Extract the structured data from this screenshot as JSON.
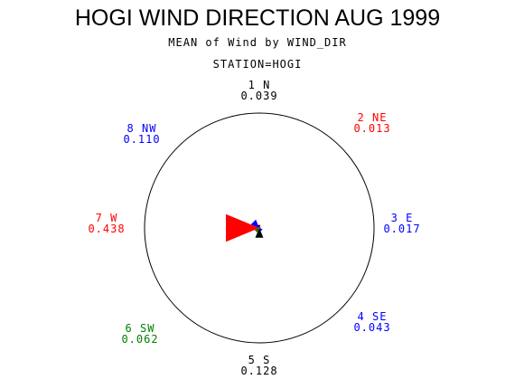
{
  "chart_data": {
    "type": "wind-rose",
    "title": "HOGI WIND DIRECTION AUG 1999",
    "subtitle": "MEAN of Wind by WIND_DIR",
    "station": "STATION=HOGI",
    "directions": [
      {
        "label": "1 N",
        "value": "0.039",
        "num": 0.039,
        "angle": 0,
        "color": "#000000"
      },
      {
        "label": "2 NE",
        "value": "0.013",
        "num": 0.013,
        "angle": 45,
        "color": "#ff0000"
      },
      {
        "label": "3 E",
        "value": "0.017",
        "num": 0.017,
        "angle": 90,
        "color": "#0000ff"
      },
      {
        "label": "4 SE",
        "value": "0.043",
        "num": 0.043,
        "angle": 135,
        "color": "#0000ff"
      },
      {
        "label": "5 S",
        "value": "0.128",
        "num": 0.128,
        "angle": 180,
        "color": "#000000"
      },
      {
        "label": "6 SW",
        "value": "0.062",
        "num": 0.062,
        "angle": 225,
        "color": "#008000"
      },
      {
        "label": "7 W",
        "value": "0.438",
        "num": 0.438,
        "angle": 270,
        "color": "#ff0000"
      },
      {
        "label": "8 NW",
        "value": "0.110",
        "num": 0.11,
        "angle": 315,
        "color": "#0000ff"
      }
    ]
  }
}
